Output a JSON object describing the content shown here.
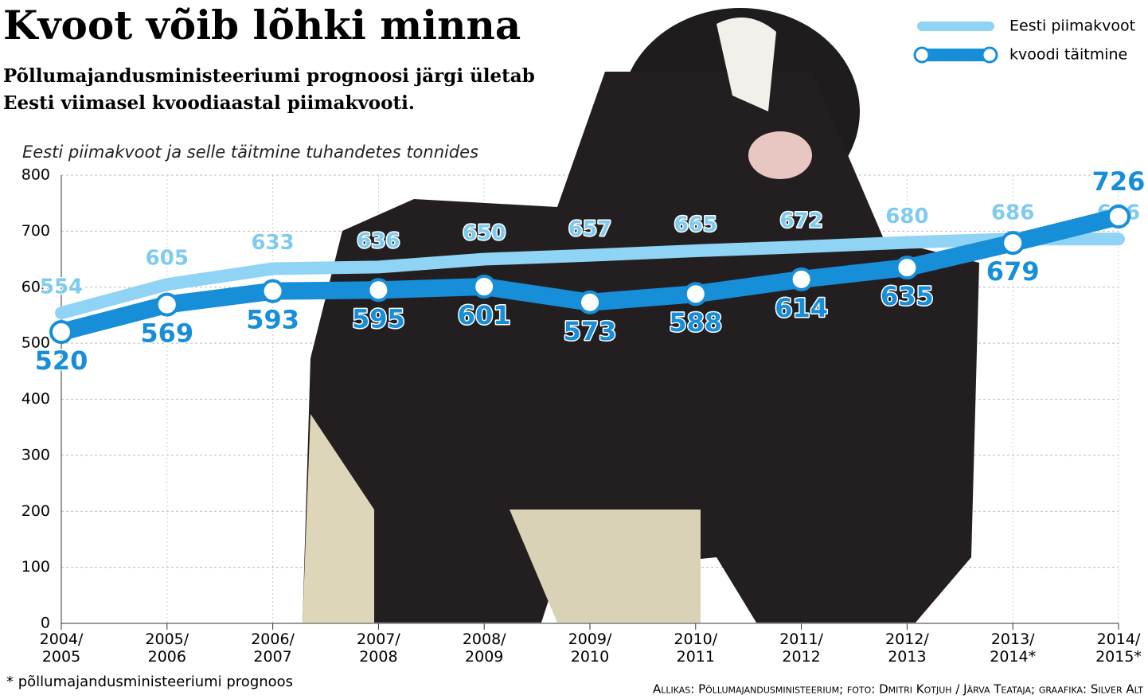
{
  "chart_data": {
    "type": "line",
    "title": "Kvoot võib lõhki minna",
    "subtitle": [
      "Põllumajandusministeeriumi prognoosi järgi ületab",
      "Eesti viimasel kvoodiaastal piimakvooti."
    ],
    "y_label": "Eesti piimakvoot ja selle täitmine tuhandetes tonnides",
    "categories": [
      "2004/\n2005",
      "2005/\n2006",
      "2006/\n2007",
      "2007/\n2008",
      "2008/\n2009",
      "2009/\n2010",
      "2010/\n2011",
      "2011/\n2012",
      "2012/\n2013",
      "2013/\n2014*",
      "2014/\n2015*"
    ],
    "series": [
      {
        "name": "Eesti piimakvoot",
        "color": "#8fd4f5",
        "values": [
          554,
          605,
          633,
          636,
          650,
          657,
          665,
          672,
          680,
          686,
          686
        ]
      },
      {
        "name": "kvoodi täitmine",
        "color": "#168ed8",
        "values": [
          520,
          569,
          593,
          595,
          601,
          573,
          588,
          614,
          635,
          679,
          726
        ]
      }
    ],
    "ylim": [
      0,
      800
    ],
    "yticks": [
      0,
      100,
      200,
      300,
      400,
      500,
      600,
      700,
      800
    ],
    "grid": true,
    "legend": "top-right",
    "footnote": "* põllumajandusministeeriumi prognoos",
    "source": "Allikas: Põllumajandusministeerium; foto: Dmitri Kotjuh / Järva Teataja; graafika: Silver Alt"
  }
}
